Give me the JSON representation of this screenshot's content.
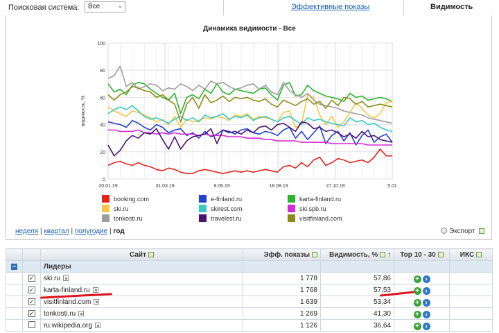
{
  "toolbar": {
    "engine_label": "Поисковая система:",
    "engine_value": "Все",
    "tab_effective": "Эффективные показы",
    "tab_visibility": "Видимость"
  },
  "chart_data": {
    "type": "line",
    "title": "Динамика видимости - Все",
    "xlabel": "",
    "ylabel": "видимость, %",
    "ylim": [
      0,
      100
    ],
    "yticks": [
      0,
      20,
      40,
      60,
      80,
      100
    ],
    "xticks": [
      "20.01.19",
      "31.03.19",
      "9.06.19",
      "18.08.19",
      "27.10.19",
      "5.01"
    ],
    "grid": true,
    "points": 48,
    "series": [
      {
        "name": "booking.com",
        "color": "#e5231b",
        "values": [
          10,
          12,
          13,
          11,
          10,
          12,
          10,
          9,
          7,
          6,
          8,
          7,
          5,
          4,
          4,
          6,
          7,
          6,
          5,
          4,
          5,
          6,
          5,
          6,
          5,
          6,
          7,
          6,
          5,
          9,
          10,
          8,
          12,
          9,
          14,
          16,
          10,
          12,
          15,
          14,
          12,
          13,
          14,
          12,
          16,
          22,
          17,
          17
        ]
      },
      {
        "name": "e-finland.ru",
        "color": "#1f3fd6",
        "values": [
          42,
          41,
          40,
          38,
          43,
          41,
          38,
          36,
          40,
          38,
          34,
          36,
          37,
          32,
          34,
          30,
          35,
          31,
          33,
          36,
          35,
          33,
          36,
          37,
          34,
          33,
          35,
          34,
          32,
          36,
          38,
          30,
          35,
          29,
          34,
          39,
          26,
          32,
          35,
          28,
          34,
          25,
          32,
          36,
          27,
          31,
          33,
          27
        ]
      },
      {
        "name": "karta-finland.ru",
        "color": "#2ab52a",
        "values": [
          70,
          64,
          66,
          62,
          69,
          71,
          70,
          66,
          63,
          60,
          58,
          63,
          48,
          60,
          62,
          59,
          66,
          63,
          70,
          64,
          62,
          66,
          65,
          64,
          63,
          66,
          67,
          62,
          58,
          69,
          71,
          61,
          62,
          69,
          65,
          63,
          61,
          60,
          59,
          57,
          63,
          60,
          61,
          58,
          59,
          60,
          59,
          57
        ]
      },
      {
        "name": "ski.ru",
        "color": "#f5c542",
        "values": [
          53,
          50,
          48,
          46,
          50,
          49,
          47,
          45,
          42,
          44,
          40,
          46,
          38,
          44,
          42,
          43,
          45,
          44,
          46,
          45,
          43,
          47,
          46,
          48,
          44,
          46,
          45,
          44,
          42,
          49,
          50,
          38,
          40,
          62,
          60,
          47,
          40,
          46,
          38,
          42,
          49,
          56,
          52,
          47,
          45,
          48,
          56,
          57
        ]
      },
      {
        "name": "skirest.com",
        "color": "#37c9c9",
        "values": [
          48,
          51,
          53,
          51,
          54,
          50,
          46,
          44,
          45,
          43,
          41,
          44,
          46,
          43,
          45,
          42,
          47,
          45,
          46,
          48,
          44,
          46,
          45,
          47,
          43,
          45,
          46,
          44,
          42,
          45,
          46,
          43,
          40,
          45,
          43,
          44,
          42,
          41,
          40,
          39,
          45,
          42,
          43,
          40,
          41,
          38,
          36,
          35
        ]
      },
      {
        "name": "ski.spb.ru",
        "color": "#d42bd4",
        "values": [
          36,
          36,
          35,
          35,
          35,
          36,
          34,
          34,
          33,
          34,
          33,
          34,
          33,
          33,
          33,
          32,
          33,
          32,
          32,
          32,
          31,
          31,
          31,
          30,
          30,
          30,
          29,
          29,
          28,
          28,
          28,
          28,
          27,
          27,
          27,
          27,
          27,
          26,
          26,
          26,
          26,
          26,
          26,
          25,
          25,
          25,
          25,
          25
        ]
      },
      {
        "name": "tonkosti.ru",
        "color": "#9e9e9e",
        "values": [
          74,
          76,
          83,
          68,
          71,
          66,
          68,
          70,
          69,
          65,
          67,
          66,
          70,
          68,
          65,
          69,
          66,
          72,
          70,
          71,
          68,
          66,
          67,
          69,
          70,
          66,
          69,
          64,
          62,
          71,
          65,
          62,
          60,
          63,
          58,
          55,
          54,
          53,
          52,
          50,
          49,
          48,
          47,
          45,
          44,
          43,
          42,
          41
        ]
      },
      {
        "name": "travelest.ru",
        "color": "#4a1272",
        "values": [
          25,
          17,
          21,
          28,
          32,
          30,
          34,
          33,
          37,
          29,
          22,
          31,
          22,
          28,
          31,
          32,
          33,
          37,
          26,
          36,
          34,
          35,
          33,
          36,
          34,
          38,
          39,
          36,
          40,
          41,
          38,
          35,
          42,
          41,
          37,
          38,
          35,
          36,
          34,
          31,
          33,
          30,
          35,
          31,
          32,
          29,
          28,
          27
        ]
      },
      {
        "name": "visitfinland.com",
        "color": "#8c8c16",
        "values": [
          62,
          58,
          62,
          64,
          68,
          67,
          65,
          64,
          60,
          62,
          58,
          55,
          42,
          55,
          60,
          52,
          62,
          56,
          58,
          61,
          57,
          60,
          59,
          60,
          58,
          57,
          59,
          55,
          53,
          58,
          56,
          54,
          57,
          59,
          55,
          57,
          52,
          58,
          54,
          60,
          59,
          55,
          57,
          53,
          54,
          55,
          54,
          53
        ]
      }
    ]
  },
  "period_nav": {
    "week": "неделя",
    "quarter": "квартал",
    "half": "полугодие",
    "year": "год"
  },
  "export_label": "Экспорт",
  "table": {
    "headers": {
      "site": "Сайт",
      "eff": "Эфф. показы",
      "vis": "Видимость, %",
      "top": "Top 10 - 30",
      "iks": "ИКС"
    },
    "sort_arrow": "↑",
    "group_label": "Лидеры",
    "group_toggle": "−",
    "checkmark": "✓",
    "rows": [
      {
        "site": "ski.ru",
        "eff": "1 778",
        "vis": "57,86",
        "checked": true
      },
      {
        "site": "karta-finland.ru",
        "eff": "1 768",
        "vis": "57,53",
        "checked": true
      },
      {
        "site": "visitfinland.com",
        "eff": "1 639",
        "vis": "53,34",
        "checked": true
      },
      {
        "site": "tonkosti.ru",
        "eff": "1 269",
        "vis": "41,30",
        "checked": true
      },
      {
        "site": "ru.wikipedia.org",
        "eff": "1 126",
        "vis": "36,64",
        "checked": false
      }
    ]
  },
  "colors": {
    "annotation_red": "#e0141b",
    "link": "#1a5fb4"
  }
}
